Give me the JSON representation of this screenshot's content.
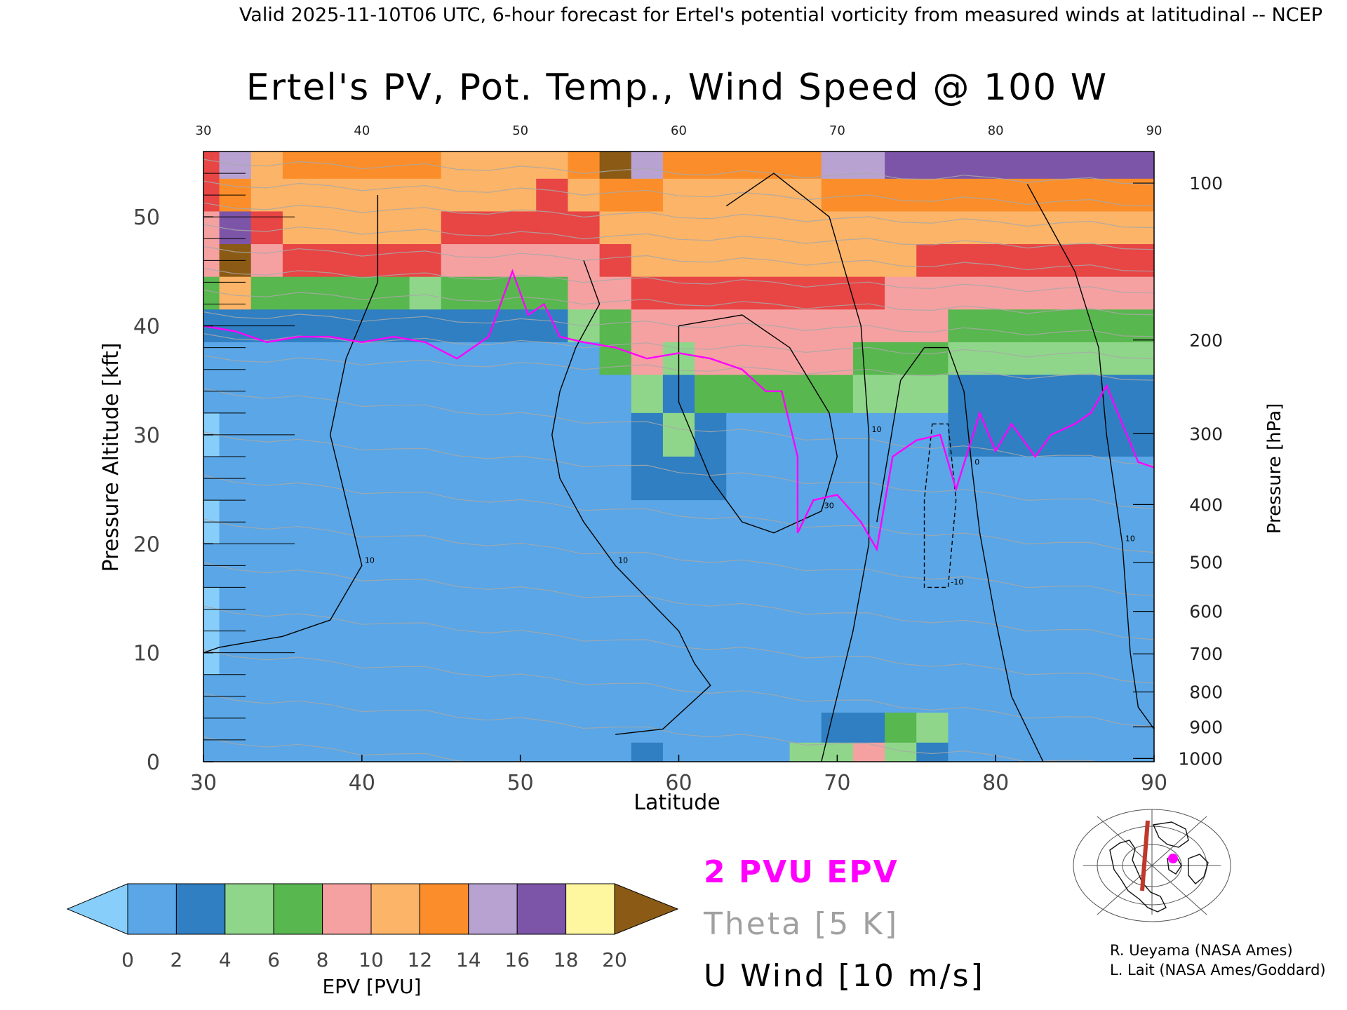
{
  "header": {
    "valid_line": "Valid 2025-11-10T06 UTC, 6-hour forecast for Ertel's potential vorticity from measured winds at latitudinal -- NCEP"
  },
  "chart_data": {
    "type": "heatmap",
    "title": "Ertel's PV, Pot. Temp., Wind Speed @ 100 W",
    "xlabel": "Latitude",
    "ylabel": "Pressure Altitude [kft]",
    "ylabel_right": "Pressure [hPa]",
    "xlim": [
      30,
      90
    ],
    "ylim": [
      0,
      56
    ],
    "x_ticks": [
      30,
      40,
      50,
      60,
      70,
      80,
      90
    ],
    "x_tick_labels": [
      "30",
      "40",
      "50",
      "60",
      "70",
      "80",
      "90"
    ],
    "y_ticks": [
      0,
      10,
      20,
      30,
      40,
      50
    ],
    "y_tick_labels": [
      "0",
      "10",
      "20",
      "30",
      "40",
      "50"
    ],
    "pressure_ticks": [
      {
        "label": "100",
        "kft": 53.1
      },
      {
        "label": "200",
        "kft": 38.7
      },
      {
        "label": "300",
        "kft": 30.1
      },
      {
        "label": "400",
        "kft": 23.6
      },
      {
        "label": "500",
        "kft": 18.3
      },
      {
        "label": "600",
        "kft": 13.8
      },
      {
        "label": "700",
        "kft": 9.9
      },
      {
        "label": "800",
        "kft": 6.4
      },
      {
        "label": "900",
        "kft": 3.2
      },
      {
        "label": "1000",
        "kft": 0.3
      }
    ],
    "tropopause_2pvu_kft": [
      [
        30,
        40
      ],
      [
        32,
        39.5
      ],
      [
        34,
        38.5
      ],
      [
        36,
        39
      ],
      [
        38,
        39
      ],
      [
        40,
        38.5
      ],
      [
        42,
        39
      ],
      [
        44,
        38.5
      ],
      [
        46,
        37
      ],
      [
        48,
        39
      ],
      [
        49.5,
        45
      ],
      [
        50.5,
        41
      ],
      [
        51.5,
        42
      ],
      [
        52.5,
        39
      ],
      [
        54,
        38.5
      ],
      [
        56,
        38
      ],
      [
        58,
        37
      ],
      [
        60,
        37.5
      ],
      [
        62,
        37
      ],
      [
        64,
        36
      ],
      [
        65.5,
        34
      ],
      [
        66.5,
        34
      ],
      [
        67.5,
        28
      ],
      [
        67.5,
        21
      ],
      [
        68.5,
        24
      ],
      [
        70,
        24.5
      ],
      [
        71.5,
        22
      ],
      [
        72.5,
        19.5
      ],
      [
        73.5,
        28
      ],
      [
        75,
        29.5
      ],
      [
        76.5,
        30
      ],
      [
        77.5,
        25
      ],
      [
        79,
        32
      ],
      [
        80,
        28.5
      ],
      [
        81,
        31
      ],
      [
        82.5,
        28
      ],
      [
        83.5,
        30
      ],
      [
        85,
        31
      ],
      [
        86,
        32
      ],
      [
        87,
        34.5
      ],
      [
        88,
        31
      ],
      [
        89,
        27.5
      ],
      [
        90,
        27
      ]
    ],
    "pv_rows": [
      {
        "kft": 55,
        "pvu": [
          9,
          14,
          10,
          12,
          13,
          13,
          13,
          12,
          11,
          11,
          10,
          10,
          12,
          20,
          14,
          12,
          12,
          12,
          12,
          13,
          14,
          14,
          15,
          15,
          15,
          16
        ]
      },
      {
        "kft": 52,
        "pvu": [
          9,
          13,
          10,
          11,
          11,
          11,
          11,
          11,
          10,
          10,
          10,
          9,
          10,
          12,
          12,
          11,
          11,
          11,
          11,
          11,
          12,
          12,
          12,
          12,
          12,
          12
        ]
      },
      {
        "kft": 49,
        "pvu": [
          8,
          15,
          9,
          10,
          10,
          10,
          10,
          10,
          9,
          9,
          9,
          9,
          9,
          10,
          11,
          11,
          11,
          11,
          11,
          11,
          11,
          11,
          11,
          11,
          10,
          10
        ]
      },
      {
        "kft": 46,
        "pvu": [
          7,
          20,
          8,
          9,
          9,
          9,
          9,
          9,
          7,
          8,
          8,
          8,
          8,
          9,
          10,
          10,
          10,
          10,
          10,
          10,
          10,
          10,
          10,
          9,
          9,
          9
        ]
      },
      {
        "kft": 43,
        "pvu": [
          5,
          10,
          5,
          5,
          5,
          5,
          5,
          4,
          5,
          5,
          5,
          6,
          7,
          8,
          9,
          9,
          9,
          9,
          9,
          9,
          9,
          9,
          8,
          8,
          8,
          8
        ]
      },
      {
        "kft": 40,
        "pvu": [
          2,
          3,
          2,
          2,
          2,
          2,
          2,
          2,
          2,
          2,
          2,
          3,
          4,
          6,
          8,
          8,
          8,
          8,
          8,
          8,
          8,
          8,
          7,
          7,
          6,
          6
        ]
      },
      {
        "kft": 37,
        "pvu": [
          1,
          1,
          1,
          1,
          1,
          1,
          1,
          1,
          1,
          1,
          1,
          1,
          1,
          5,
          7,
          4,
          8,
          8,
          8,
          8,
          7,
          6,
          6,
          5,
          4,
          4
        ]
      },
      {
        "kft": 34,
        "pvu": [
          1,
          1,
          1,
          1,
          1,
          1,
          1,
          1,
          1,
          1,
          1,
          1,
          1,
          1,
          4,
          3,
          5,
          5,
          5,
          5,
          5,
          4,
          4,
          4,
          3,
          3
        ]
      },
      {
        "kft": 30,
        "pvu": [
          0.5,
          1,
          1,
          1,
          1,
          1,
          1,
          1,
          1,
          1,
          1,
          1,
          1,
          1,
          3,
          4,
          2,
          1,
          1,
          1,
          1,
          1,
          1,
          1,
          2,
          2
        ]
      },
      {
        "kft": 26,
        "pvu": [
          1,
          1,
          1,
          1,
          1,
          1,
          1,
          1,
          1,
          1,
          1,
          1,
          1,
          1,
          2,
          3,
          2,
          1,
          1,
          1,
          1,
          1,
          1,
          1,
          1,
          1
        ]
      },
      {
        "kft": 22,
        "pvu": [
          0.5,
          1,
          1,
          1,
          1,
          1,
          1,
          1,
          1,
          1,
          1,
          1,
          1,
          1,
          1,
          1,
          1,
          1,
          1,
          1,
          1,
          1,
          1,
          1,
          1,
          1
        ]
      },
      {
        "kft": 18,
        "pvu": [
          1,
          1,
          1,
          1,
          1,
          1,
          1,
          1,
          1,
          1,
          1,
          1,
          1,
          1,
          1,
          1,
          1,
          1,
          1,
          1,
          1,
          1,
          1,
          1,
          1,
          1
        ]
      },
      {
        "kft": 14,
        "pvu": [
          0.5,
          1,
          1,
          1,
          1,
          1,
          1,
          1,
          1,
          1,
          1,
          1,
          1,
          1,
          1,
          1,
          1,
          1,
          1,
          1,
          1,
          1,
          1,
          1,
          1,
          1
        ]
      },
      {
        "kft": 10,
        "pvu": [
          0.5,
          1,
          1,
          1,
          1,
          1,
          1,
          1,
          1,
          1,
          1,
          1,
          1,
          1,
          1,
          1,
          1,
          1,
          1,
          1,
          1,
          1,
          1,
          1,
          1,
          1
        ]
      },
      {
        "kft": 6,
        "pvu": [
          1,
          1,
          1,
          1,
          1,
          1,
          1,
          1,
          1,
          1,
          1,
          1,
          1,
          1,
          1,
          1,
          1,
          1,
          1,
          1,
          1,
          1,
          1,
          1,
          1,
          1
        ]
      },
      {
        "kft": 3,
        "pvu": [
          1,
          1,
          1,
          1,
          1,
          1,
          1,
          1,
          1,
          1,
          1,
          1,
          1,
          1,
          1,
          1,
          1,
          1,
          1,
          1,
          2,
          2,
          5,
          4,
          1,
          1
        ]
      },
      {
        "kft": 0.5,
        "pvu": [
          1,
          1,
          1,
          1,
          1,
          1,
          1,
          1,
          1,
          1,
          1,
          1,
          1,
          1,
          3,
          1,
          1,
          1,
          1,
          4,
          4,
          8,
          4,
          2,
          1,
          1
        ]
      }
    ],
    "pv_row_lats": [
      30,
      32,
      34,
      36,
      38,
      40,
      42,
      44,
      46,
      48,
      50,
      52,
      54,
      56,
      58,
      60,
      62,
      64,
      66,
      68,
      70,
      72,
      74,
      76,
      78,
      80
    ],
    "wind_contours": [
      {
        "label": "10",
        "style": "solid",
        "points": [
          [
            41,
            52
          ],
          [
            41,
            44
          ],
          [
            39,
            37
          ],
          [
            38,
            30
          ],
          [
            39,
            24
          ],
          [
            40,
            18
          ],
          [
            38,
            13
          ],
          [
            35,
            11.5
          ],
          [
            33,
            11
          ],
          [
            31,
            10.5
          ],
          [
            30,
            10
          ]
        ]
      },
      {
        "label": "10",
        "style": "solid",
        "points": [
          [
            54,
            46
          ],
          [
            55,
            42
          ],
          [
            53.5,
            38
          ],
          [
            52.5,
            34
          ],
          [
            52,
            30
          ],
          [
            52.5,
            26
          ],
          [
            54,
            22
          ],
          [
            56,
            18
          ],
          [
            58,
            15
          ],
          [
            60,
            12
          ],
          [
            61,
            9
          ],
          [
            62,
            7
          ],
          [
            59,
            3
          ],
          [
            56,
            2.5
          ]
        ]
      },
      {
        "label": "10",
        "style": "solid",
        "points": [
          [
            63,
            51
          ],
          [
            66,
            54
          ],
          [
            69.5,
            50
          ],
          [
            71.5,
            40
          ],
          [
            72,
            30
          ],
          [
            72,
            20
          ],
          [
            71,
            12
          ],
          [
            70,
            6
          ],
          [
            69,
            0
          ]
        ]
      },
      {
        "label": "30",
        "style": "solid",
        "points": [
          [
            60,
            40
          ],
          [
            64,
            41
          ],
          [
            67,
            38
          ],
          [
            69.5,
            32
          ],
          [
            70,
            28
          ],
          [
            69,
            23
          ],
          [
            66,
            21
          ],
          [
            64,
            22
          ],
          [
            62,
            26
          ],
          [
            60,
            33
          ],
          [
            60,
            40
          ]
        ]
      },
      {
        "label": "0",
        "style": "solid",
        "points": [
          [
            72.5,
            22
          ],
          [
            74,
            35
          ],
          [
            75.5,
            38
          ],
          [
            77,
            38
          ],
          [
            78,
            34
          ],
          [
            78.5,
            27
          ],
          [
            79,
            21
          ],
          [
            80,
            13
          ],
          [
            81,
            6
          ],
          [
            83,
            0
          ]
        ]
      },
      {
        "label": "10",
        "style": "solid",
        "points": [
          [
            82,
            53
          ],
          [
            85,
            45
          ],
          [
            86.5,
            38
          ],
          [
            87,
            30
          ],
          [
            88,
            20
          ],
          [
            88.5,
            10
          ],
          [
            89,
            5
          ],
          [
            90,
            3
          ]
        ]
      },
      {
        "label": "-10",
        "style": "dashed",
        "points": [
          [
            76,
            31
          ],
          [
            77,
            31
          ],
          [
            77.5,
            24
          ],
          [
            77,
            16
          ],
          [
            75.5,
            16
          ],
          [
            75.5,
            24
          ],
          [
            76,
            31
          ]
        ]
      }
    ],
    "theta_lines_kft_at_lat30": [
      2,
      6,
      10,
      14,
      18,
      22,
      26,
      30,
      34,
      37,
      39,
      41,
      43,
      45,
      47,
      49,
      51,
      53,
      55
    ],
    "colorbar": {
      "label": "EPV [PVU]",
      "ticks": [
        "0",
        "2",
        "4",
        "6",
        "8",
        "10",
        "12",
        "14",
        "16",
        "18",
        "20"
      ],
      "colors": [
        "#5aa6e6",
        "#2f7fc2",
        "#8fd68a",
        "#58b74e",
        "#f5a1a1",
        "#e84545",
        "#fbb468",
        "#fb8e2a",
        "#b8a2d2",
        "#7d55a8",
        "#fff6a0",
        "#e6c878"
      ],
      "under_color": "#87cefa",
      "over_color": "#8b5a14"
    }
  },
  "legend": {
    "pv_label": "2 PVU EPV",
    "pv_color": "#ff00ff",
    "theta_label": "Theta [5 K]",
    "theta_color": "#a0a0a0",
    "wind_label": "U Wind [10 m/s]",
    "wind_color": "#000000"
  },
  "credits": {
    "line1": "R. Ueyama (NASA Ames)",
    "line2": "L. Lait (NASA Ames/Goddard)"
  },
  "inset_map": {
    "icon": "globe-map-icon",
    "section_color": "#c0392b",
    "marker_color": "#ff00ff"
  }
}
